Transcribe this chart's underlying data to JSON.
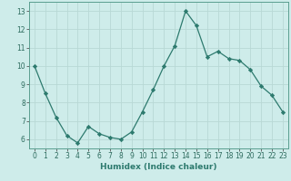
{
  "x_data": [
    0,
    1,
    2,
    3,
    4,
    5,
    6,
    7,
    8,
    9,
    10,
    11,
    12,
    13,
    14,
    15,
    16,
    17,
    18,
    19,
    20,
    21,
    22,
    23
  ],
  "y_data": [
    10.0,
    8.5,
    7.2,
    6.2,
    5.8,
    6.7,
    6.3,
    6.1,
    6.0,
    6.4,
    7.5,
    8.7,
    10.0,
    11.1,
    13.0,
    12.2,
    10.5,
    10.8,
    10.4,
    10.3,
    9.8,
    8.9,
    8.4,
    7.5
  ],
  "line_color": "#2d7a6e",
  "marker": "D",
  "marker_size": 2.2,
  "bg_color": "#ceecea",
  "grid_color": "#b8d8d5",
  "xlabel": "Humidex (Indice chaleur)",
  "ylim": [
    5.5,
    13.5
  ],
  "xlim": [
    -0.5,
    23.5
  ],
  "yticks": [
    6,
    7,
    8,
    9,
    10,
    11,
    12,
    13
  ],
  "xticks": [
    0,
    1,
    2,
    3,
    4,
    5,
    6,
    7,
    8,
    9,
    10,
    11,
    12,
    13,
    14,
    15,
    16,
    17,
    18,
    19,
    20,
    21,
    22,
    23
  ],
  "tick_fontsize": 5.5,
  "xlabel_fontsize": 6.5,
  "linewidth": 0.9
}
